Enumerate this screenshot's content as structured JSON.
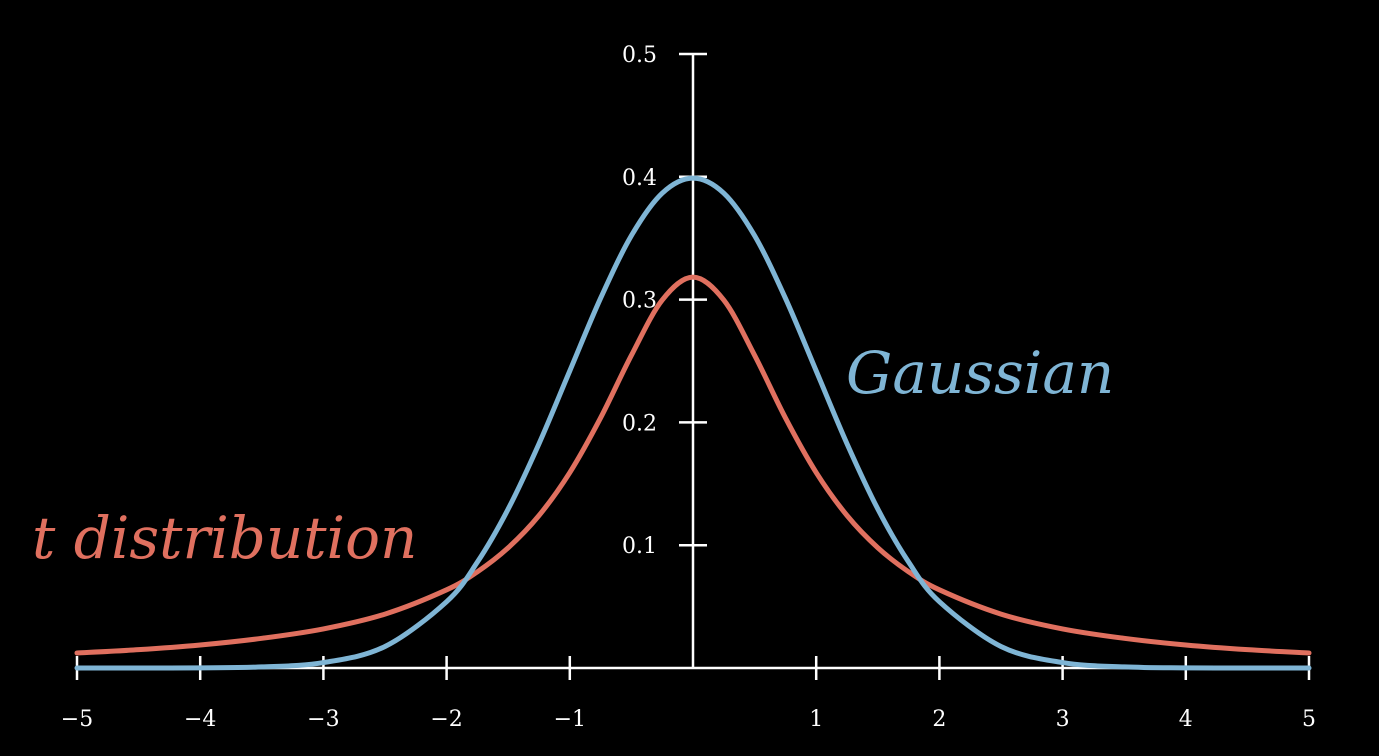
{
  "chart_data": {
    "type": "line",
    "title": "",
    "xlabel": "",
    "ylabel": "",
    "xlim": [
      -5,
      5
    ],
    "ylim": [
      0,
      0.5
    ],
    "grid": false,
    "legend": "inline labels beside curves",
    "x_ticks": [
      -5,
      -4,
      -3,
      -2,
      -1,
      1,
      2,
      3,
      4,
      5
    ],
    "x_tick_labels": [
      "−5",
      "−4",
      "−3",
      "−2",
      "−1",
      "1",
      "2",
      "3",
      "4",
      "5"
    ],
    "y_ticks": [
      0.1,
      0.2,
      0.3,
      0.4,
      0.5
    ],
    "y_tick_labels": [
      "0.1",
      "0.2",
      "0.3",
      "0.4",
      "0.5"
    ],
    "series": [
      {
        "name": "Gaussian",
        "color": "#7fb5d5",
        "x": [
          -5,
          -4.5,
          -4,
          -3.5,
          -3,
          -2.5,
          -2,
          -1.75,
          -1.5,
          -1.25,
          -1,
          -0.75,
          -0.5,
          -0.25,
          0,
          0.25,
          0.5,
          0.75,
          1,
          1.25,
          1.5,
          1.75,
          2,
          2.5,
          3,
          3.5,
          4,
          4.5,
          5
        ],
        "y": [
          1.5e-06,
          1.6e-05,
          0.000134,
          0.000873,
          0.004432,
          0.017528,
          0.053991,
          0.086277,
          0.129518,
          0.182649,
          0.241971,
          0.301137,
          0.352065,
          0.386668,
          0.398942,
          0.386668,
          0.352065,
          0.301137,
          0.241971,
          0.182649,
          0.129518,
          0.086277,
          0.053991,
          0.017528,
          0.004432,
          0.000873,
          0.000134,
          1.6e-05,
          1.5e-06
        ]
      },
      {
        "name": "t distribution",
        "color": "#e0705f",
        "x": [
          -5,
          -4.5,
          -4,
          -3.5,
          -3,
          -2.5,
          -2,
          -1.75,
          -1.5,
          -1.25,
          -1,
          -0.75,
          -0.5,
          -0.25,
          0,
          0.25,
          0.5,
          0.75,
          1,
          1.25,
          1.5,
          1.75,
          2,
          2.5,
          3,
          3.5,
          4,
          4.5,
          5
        ],
        "y": [
          0.012243,
          0.014925,
          0.018724,
          0.024163,
          0.031831,
          0.043905,
          0.063662,
          0.078351,
          0.097942,
          0.124189,
          0.159155,
          0.203718,
          0.254648,
          0.299585,
          0.31831,
          0.299585,
          0.254648,
          0.203718,
          0.159155,
          0.124189,
          0.097942,
          0.078351,
          0.063662,
          0.043905,
          0.031831,
          0.024163,
          0.018724,
          0.014925,
          0.012243
        ]
      }
    ]
  }
}
